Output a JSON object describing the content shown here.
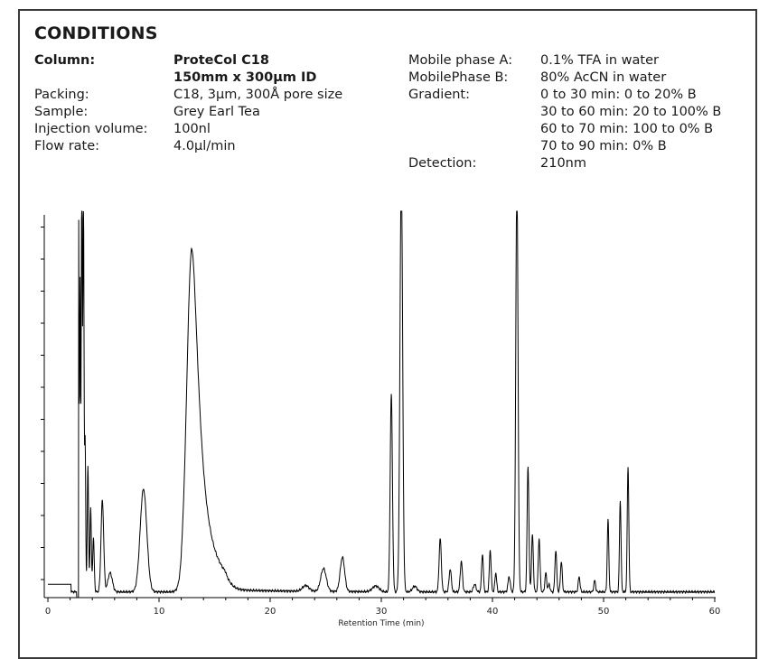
{
  "heading": "CONDITIONS",
  "left_conditions": [
    {
      "label": "Column:",
      "value": "ProteCol C18",
      "bold": true
    },
    {
      "label": "",
      "value": "150mm x 300µm ID",
      "bold": true
    },
    {
      "label": "Packing:",
      "value": "C18, 3µm, 300Å pore size",
      "bold": false
    },
    {
      "label": "Sample:",
      "value": "Grey Earl Tea",
      "bold": false
    },
    {
      "label": "Injection volume:",
      "value": "100nl",
      "bold": false
    },
    {
      "label": "Flow rate:",
      "value": "4.0µl/min",
      "bold": false
    }
  ],
  "right_conditions": [
    {
      "label": "Mobile phase A:",
      "value": "0.1% TFA in water"
    },
    {
      "label": "MobilePhase B:",
      "value": "80% AcCN in water"
    },
    {
      "label": "Gradient:",
      "value": "0 to 30 min: 0 to 20% B"
    },
    {
      "label": "",
      "value": "30 to 60 min: 20 to 100% B"
    },
    {
      "label": "",
      "value": "60 to 70 min: 100 to 0% B"
    },
    {
      "label": "",
      "value": "70 to 90 min: 0% B"
    },
    {
      "label": "Detection:",
      "value": "210nm"
    }
  ],
  "chart_data": {
    "type": "line",
    "title": "",
    "xlabel": "Retention Time (min)",
    "ylabel": "",
    "xlim": [
      0,
      60
    ],
    "ylim": [
      0,
      100
    ],
    "x_ticks": [
      0,
      10,
      20,
      30,
      40,
      50,
      60
    ],
    "y_tick_count": 12,
    "grid": false,
    "legend": "none",
    "line_color": "#000000",
    "baseline": 1.5,
    "pre_injection": {
      "x_end": 2.1,
      "level": 3.5
    },
    "negative_dip": {
      "x_start": 2.6,
      "x_end": 2.75,
      "level": -2
    },
    "peaks": [
      {
        "rt": 2.75,
        "height": 110,
        "width": 0.05
      },
      {
        "rt": 2.9,
        "height": 80,
        "width": 0.04
      },
      {
        "rt": 3.05,
        "height": 110,
        "width": 0.05
      },
      {
        "rt": 3.2,
        "height": 105,
        "width": 0.05
      },
      {
        "rt": 3.35,
        "height": 40,
        "width": 0.05
      },
      {
        "rt": 3.6,
        "height": 33,
        "width": 0.06
      },
      {
        "rt": 3.85,
        "height": 22,
        "width": 0.06
      },
      {
        "rt": 4.1,
        "height": 14,
        "width": 0.07
      },
      {
        "rt": 4.9,
        "height": 24,
        "width": 0.12
      },
      {
        "rt": 5.6,
        "height": 5,
        "width": 0.2
      },
      {
        "rt": 8.6,
        "height": 27,
        "width": 0.3
      },
      {
        "rt": 12.95,
        "height": 89,
        "width": 0.45,
        "tail": 0.8
      },
      {
        "rt": 23.2,
        "height": 1.5,
        "width": 0.3
      },
      {
        "rt": 24.8,
        "height": 6,
        "width": 0.25
      },
      {
        "rt": 26.5,
        "height": 9,
        "width": 0.2
      },
      {
        "rt": 29.5,
        "height": 1.5,
        "width": 0.3
      },
      {
        "rt": 30.9,
        "height": 52,
        "width": 0.1
      },
      {
        "rt": 31.8,
        "height": 110,
        "width": 0.12
      },
      {
        "rt": 33.0,
        "height": 1.5,
        "width": 0.2
      },
      {
        "rt": 35.3,
        "height": 14,
        "width": 0.1
      },
      {
        "rt": 36.2,
        "height": 6,
        "width": 0.1
      },
      {
        "rt": 37.2,
        "height": 8,
        "width": 0.1
      },
      {
        "rt": 38.4,
        "height": 2,
        "width": 0.12
      },
      {
        "rt": 39.1,
        "height": 10,
        "width": 0.08
      },
      {
        "rt": 39.8,
        "height": 11,
        "width": 0.08
      },
      {
        "rt": 40.3,
        "height": 5,
        "width": 0.08
      },
      {
        "rt": 41.5,
        "height": 4,
        "width": 0.1
      },
      {
        "rt": 42.2,
        "height": 110,
        "width": 0.1
      },
      {
        "rt": 43.2,
        "height": 33,
        "width": 0.08
      },
      {
        "rt": 43.6,
        "height": 15,
        "width": 0.08
      },
      {
        "rt": 44.2,
        "height": 14,
        "width": 0.08
      },
      {
        "rt": 44.8,
        "height": 5,
        "width": 0.08
      },
      {
        "rt": 45.1,
        "height": 2,
        "width": 0.08
      },
      {
        "rt": 45.7,
        "height": 11,
        "width": 0.08
      },
      {
        "rt": 46.2,
        "height": 8,
        "width": 0.08
      },
      {
        "rt": 47.8,
        "height": 4,
        "width": 0.08
      },
      {
        "rt": 49.2,
        "height": 3,
        "width": 0.08
      },
      {
        "rt": 50.4,
        "height": 19,
        "width": 0.07
      },
      {
        "rt": 51.5,
        "height": 24,
        "width": 0.07
      },
      {
        "rt": 52.2,
        "height": 33,
        "width": 0.07
      }
    ]
  }
}
